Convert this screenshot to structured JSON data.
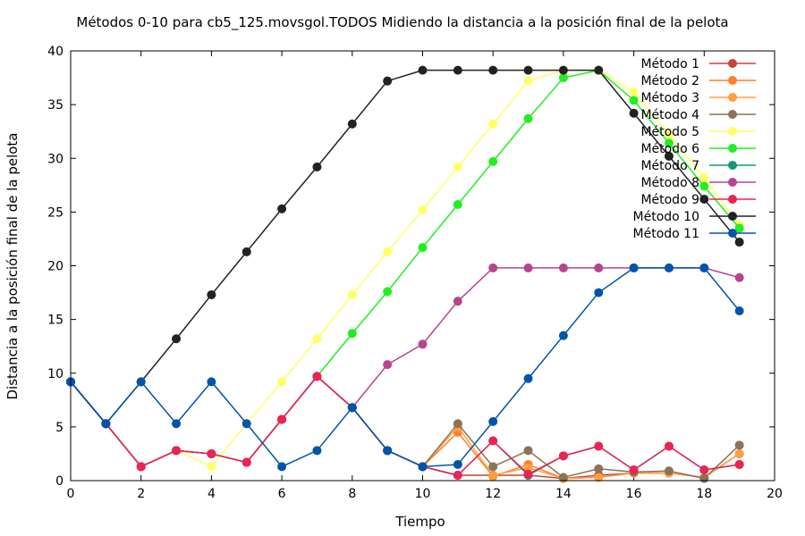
{
  "chart_data": {
    "type": "line",
    "title": "Métodos 0-10 para cb5_125.movsgol.TODOS Midiendo la distancia a la posición final de la pelota",
    "xlabel": "Tiempo",
    "ylabel": "Distancia a la posición final de la pelota",
    "xlim": [
      0,
      20
    ],
    "ylim": [
      0,
      40
    ],
    "xticks": [
      "0",
      "2",
      "4",
      "6",
      "8",
      "10",
      "12",
      "14",
      "16",
      "18",
      "20"
    ],
    "yticks": [
      "0",
      "5",
      "10",
      "15",
      "20",
      "25",
      "30",
      "35",
      "40"
    ],
    "legend_position": "top-right",
    "x": [
      0,
      1,
      2,
      3,
      4,
      5,
      6,
      7,
      8,
      9,
      10,
      11,
      12,
      13,
      14,
      15,
      16,
      17,
      18,
      19
    ],
    "series": [
      {
        "name": "Método 1",
        "color": "#c8413c",
        "values": [
          9.2,
          5.3,
          1.3,
          2.8,
          2.5,
          1.7,
          5.7,
          9.7,
          6.8,
          2.8,
          1.3,
          0.5,
          0.5,
          0.5,
          0.2,
          0.5,
          0.7,
          0.7,
          0.3,
          2.5
        ]
      },
      {
        "name": "Método 2",
        "color": "#ff7f2a",
        "values": [
          9.2,
          5.3,
          1.3,
          2.8,
          2.5,
          1.7,
          5.7,
          9.7,
          6.8,
          2.8,
          1.3,
          4.5,
          0.4,
          1.5,
          0.2,
          0.3,
          0.7,
          0.7,
          0.3,
          2.5
        ]
      },
      {
        "name": "Método 3",
        "color": "#ffa040",
        "values": [
          9.2,
          5.3,
          1.3,
          2.8,
          2.5,
          1.7,
          5.7,
          9.7,
          6.8,
          2.8,
          1.3,
          5.0,
          0.5,
          1.2,
          0.2,
          0.3,
          0.7,
          0.7,
          0.3,
          2.5
        ]
      },
      {
        "name": "Método 4",
        "color": "#8b7355",
        "values": [
          9.2,
          5.3,
          1.3,
          2.8,
          2.5,
          1.7,
          5.7,
          9.7,
          6.8,
          2.8,
          1.3,
          5.3,
          1.3,
          2.8,
          0.3,
          1.1,
          0.8,
          0.9,
          0.2,
          3.3
        ]
      },
      {
        "name": "Método 5",
        "color": "#ffff66",
        "values": [
          9.2,
          5.3,
          1.3,
          2.8,
          1.3,
          5.3,
          9.2,
          13.2,
          17.3,
          21.3,
          25.2,
          29.2,
          33.2,
          37.2,
          38.2,
          38.2,
          36.2,
          32.2,
          28.2,
          23.8
        ]
      },
      {
        "name": "Método 6",
        "color": "#22ee22",
        "values": [
          9.2,
          5.3,
          1.3,
          2.8,
          2.5,
          1.7,
          5.7,
          9.7,
          13.7,
          17.6,
          21.7,
          25.7,
          29.7,
          33.7,
          37.5,
          38.2,
          35.4,
          31.4,
          27.4,
          23.5
        ]
      },
      {
        "name": "Método 7",
        "color": "#119977",
        "values": [
          9.2,
          5.3,
          1.3,
          2.8,
          2.5,
          1.7,
          5.7,
          9.7,
          6.8,
          2.8,
          1.3,
          0.5,
          3.7,
          0.5,
          2.3,
          3.2,
          1.0,
          3.2,
          1.0,
          1.5
        ]
      },
      {
        "name": "Método 8",
        "color": "#b84490",
        "values": [
          9.2,
          5.3,
          1.3,
          2.8,
          2.5,
          1.7,
          5.7,
          9.7,
          6.8,
          10.8,
          12.7,
          16.7,
          19.8,
          19.8,
          19.8,
          19.8,
          19.8,
          19.8,
          19.8,
          18.9
        ]
      },
      {
        "name": "Método 9",
        "color": "#ee2255",
        "values": [
          9.2,
          5.3,
          1.3,
          2.8,
          2.5,
          1.7,
          5.7,
          9.7,
          6.8,
          2.8,
          1.3,
          0.5,
          3.7,
          0.6,
          2.3,
          3.2,
          1.0,
          3.2,
          1.0,
          1.5
        ]
      },
      {
        "name": "Método 10",
        "color": "#222222",
        "values": [
          9.2,
          5.3,
          9.2,
          13.2,
          17.3,
          21.3,
          25.3,
          29.2,
          33.2,
          37.2,
          38.2,
          38.2,
          38.2,
          38.2,
          38.2,
          38.2,
          34.2,
          30.2,
          26.2,
          22.2
        ]
      },
      {
        "name": "Método 11",
        "color": "#0055aa",
        "values": [
          9.2,
          5.3,
          9.2,
          5.3,
          9.2,
          5.3,
          1.3,
          2.8,
          6.8,
          2.8,
          1.3,
          1.5,
          5.5,
          9.5,
          13.5,
          17.5,
          19.8,
          19.8,
          19.8,
          15.8
        ]
      }
    ]
  }
}
